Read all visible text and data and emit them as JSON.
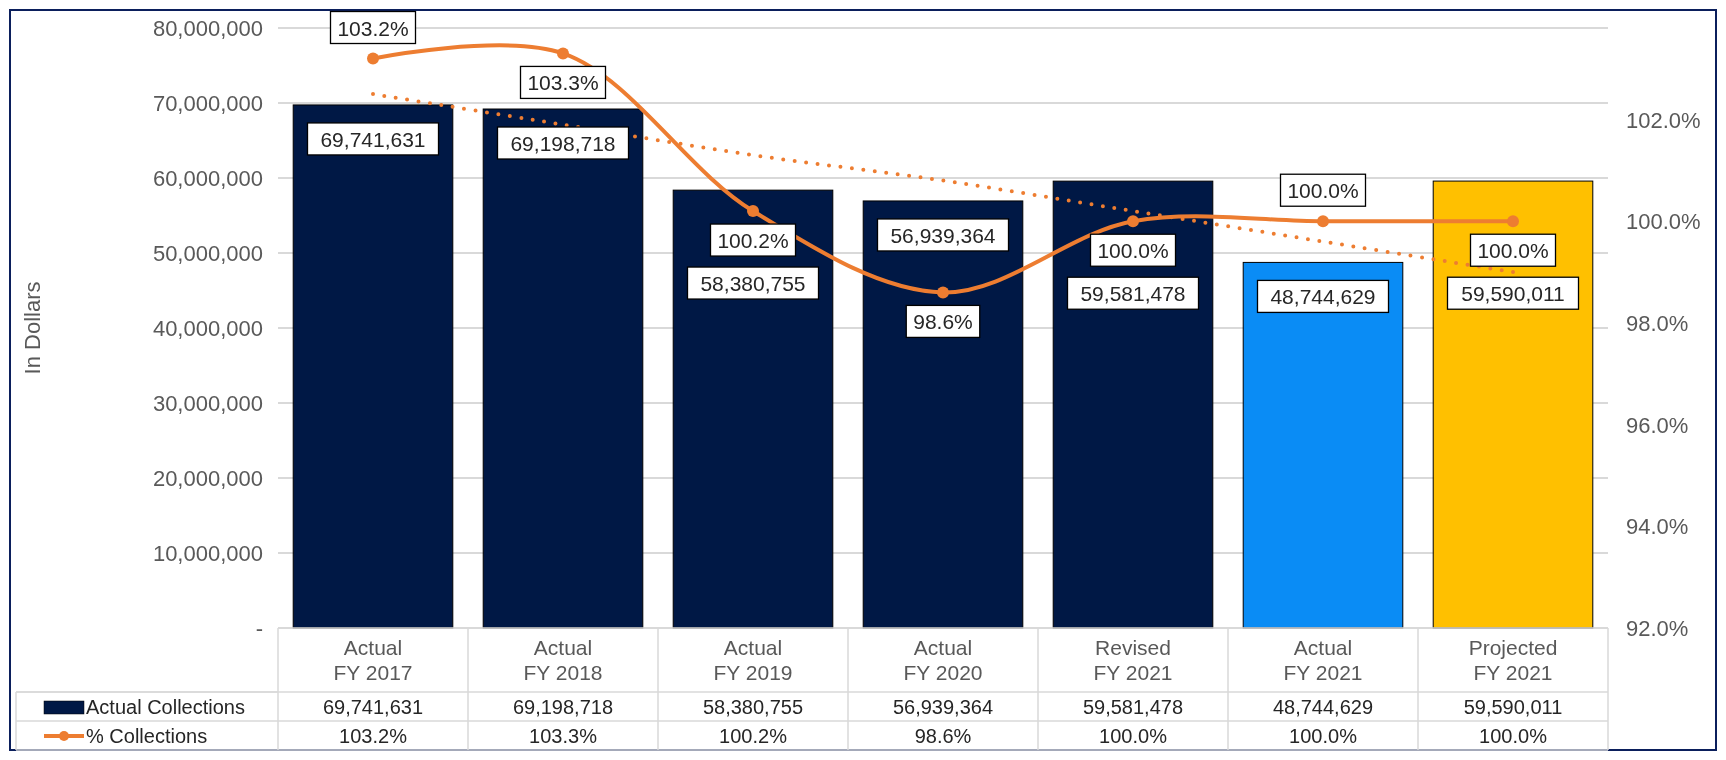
{
  "chart_data": {
    "type": "bar",
    "ylabel": "In Dollars",
    "categories": [
      "Actual FY 2017",
      "Actual FY 2018",
      "Actual FY 2019",
      "Actual FY 2020",
      "Revised FY 2021",
      "Actual FY 2021",
      "Projected FY 2021"
    ],
    "series": [
      {
        "name": "Actual Collections",
        "color": "#001845",
        "colors": [
          "#001845",
          "#001845",
          "#001845",
          "#001845",
          "#001845",
          "#0a8cf5",
          "#ffc000"
        ],
        "values": [
          69741631,
          69198718,
          58380755,
          56939364,
          59581478,
          48744629,
          59590011
        ],
        "value_labels": [
          "69,741,631",
          "69,198,718",
          "58,380,755",
          "56,939,364",
          "59,581,478",
          "48,744,629",
          "59,590,011"
        ]
      },
      {
        "name": "% Collections",
        "type": "line",
        "axis": "y2",
        "color": "#ed7d31",
        "marker": "circle",
        "line_style": "solid",
        "values": [
          103.2,
          103.3,
          100.2,
          98.6,
          100.0,
          100.0,
          100.0
        ],
        "value_labels": [
          "103.2%",
          "103.3%",
          "100.2%",
          "98.6%",
          "100.0%",
          "100.0%",
          "100.0%"
        ]
      },
      {
        "type": "line",
        "axis": "y2",
        "color": "#ed7d31",
        "marker": "none",
        "line_style": "dotted",
        "values": [
          102.5,
          101.9,
          101.3,
          100.8,
          100.2,
          99.6,
          99.0
        ]
      }
    ],
    "ylim": [
      0,
      80000000
    ],
    "yticks": [
      {
        "value": 0,
        "label": "-"
      },
      {
        "value": 10000000,
        "label": "10,000,000"
      },
      {
        "value": 20000000,
        "label": "20,000,000"
      },
      {
        "value": 30000000,
        "label": "30,000,000"
      },
      {
        "value": 40000000,
        "label": "40,000,000"
      },
      {
        "value": 50000000,
        "label": "50,000,000"
      },
      {
        "value": 60000000,
        "label": "60,000,000"
      },
      {
        "value": 70000000,
        "label": "70,000,000"
      },
      {
        "value": 80000000,
        "label": "80,000,000"
      }
    ],
    "y2lim": [
      92,
      103.8
    ],
    "y2ticks": [
      {
        "value": 92,
        "label": "92.0%"
      },
      {
        "value": 94,
        "label": "94.0%"
      },
      {
        "value": 96,
        "label": "96.0%"
      },
      {
        "value": 98,
        "label": "98.0%"
      },
      {
        "value": 100,
        "label": "100.0%"
      },
      {
        "value": 102,
        "label": "102.0%"
      }
    ],
    "grid": "y",
    "legend": "bottom"
  }
}
